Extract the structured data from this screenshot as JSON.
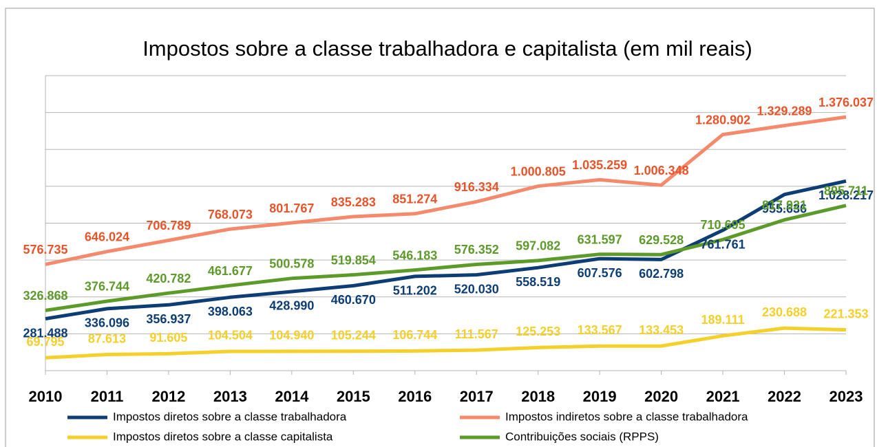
{
  "chart_data": {
    "type": "line",
    "title": "Impostos sobre a classe trabalhadora e capitalista (em mil reais)",
    "categories": [
      "2010",
      "2011",
      "2012",
      "2013",
      "2014",
      "2015",
      "2016",
      "2017",
      "2018",
      "2019",
      "2020",
      "2021",
      "2022",
      "2023"
    ],
    "ylim": [
      0,
      1600000
    ],
    "yticks": [
      0,
      200000,
      400000,
      600000,
      800000,
      1000000,
      1200000,
      1400000,
      1600000
    ],
    "grid": true,
    "series": [
      {
        "name": "Impostos diretos sobre a classe trabalhadora",
        "color": "#0d3d75",
        "label_color": "#0d3d75",
        "values": [
          281488,
          336096,
          356937,
          398063,
          428990,
          460670,
          511202,
          520030,
          558519,
          607576,
          602798,
          761761,
          955636,
          1028217
        ],
        "value_labels": [
          "281.488",
          "336.096",
          "356.937",
          "398.063",
          "428.990",
          "460.670",
          "511.202",
          "520.030",
          "558.519",
          "607.576",
          "602.798",
          "761.761",
          "955.636",
          "1.028.217"
        ]
      },
      {
        "name": "Impostos indiretos sobre a classe trabalhadora",
        "color": "#f4896b",
        "label_color": "#e8542a",
        "values": [
          576735,
          646024,
          706789,
          768073,
          801767,
          835283,
          851274,
          916334,
          1000805,
          1035259,
          1006348,
          1280902,
          1329289,
          1376037
        ],
        "value_labels": [
          "576.735",
          "646.024",
          "706.789",
          "768.073",
          "801.767",
          "835.283",
          "851.274",
          "916.334",
          "1.000.805",
          "1.035.259",
          "1.006.348",
          "1.280.902",
          "1.329.289",
          "1.376.037"
        ]
      },
      {
        "name": "Impostos diretos sobre a classe capitalista",
        "color": "#f5cf2a",
        "label_color": "#f5cf2a",
        "values": [
          69795,
          87613,
          91605,
          104504,
          104940,
          105244,
          106744,
          111567,
          125253,
          133567,
          133453,
          189111,
          230688,
          221353
        ],
        "value_labels": [
          "69.795",
          "87.613",
          "91.605",
          "104.504",
          "104.940",
          "105.244",
          "106.744",
          "111.567",
          "125.253",
          "133.567",
          "133.453",
          "189.111",
          "230.688",
          "221.353"
        ]
      },
      {
        "name": "Contribuições sociais (RPPS)",
        "color": "#5c9a2a",
        "label_color": "#5c9a2a",
        "values": [
          326868,
          376744,
          420782,
          461677,
          500578,
          519854,
          546183,
          576352,
          597082,
          631597,
          629528,
          710695,
          817921,
          895711
        ],
        "value_labels": [
          "326.868",
          "376.744",
          "420.782",
          "461.677",
          "500.578",
          "519.854",
          "546.183",
          "576.352",
          "597.082",
          "631.597",
          "629.528",
          "710.695",
          "817.921",
          "895.711"
        ]
      }
    ]
  }
}
